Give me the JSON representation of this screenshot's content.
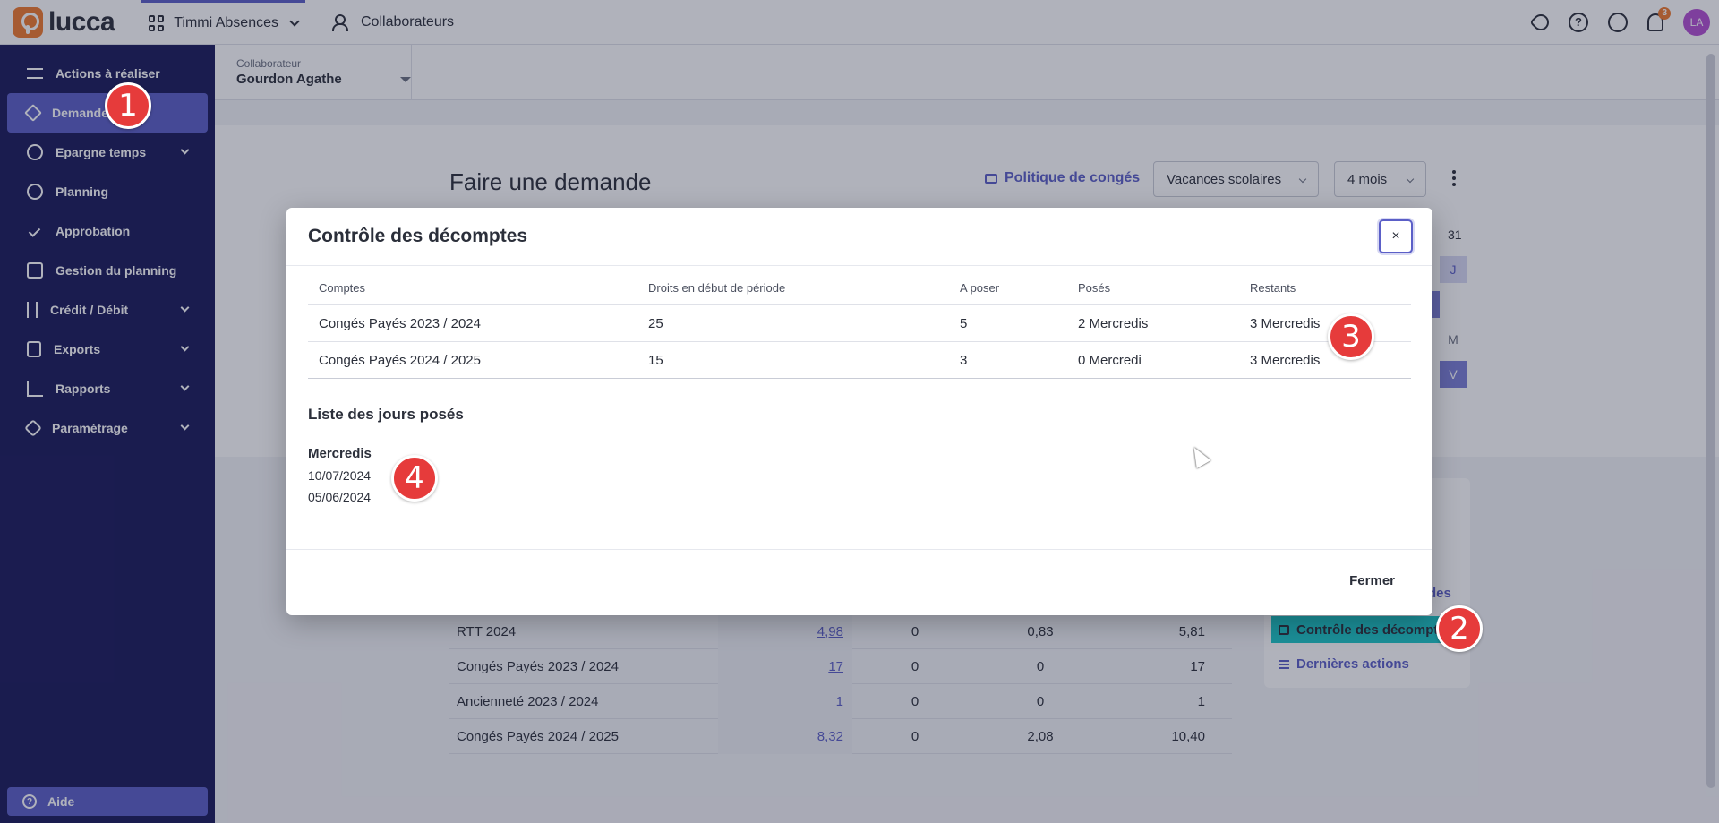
{
  "topbar": {
    "logo_text": "lucca",
    "app_name": "Timmi Absences",
    "collaborators_link": "Collaborateurs",
    "notification_count": "3",
    "help_glyph": "?",
    "avatar_initials": "LA"
  },
  "sidebar": {
    "items": [
      {
        "label": "Actions à réaliser",
        "icon": "task-list-icon"
      },
      {
        "label": "Demande",
        "icon": "paper-plane-icon"
      },
      {
        "label": "Epargne temps",
        "icon": "clock-icon"
      },
      {
        "label": "Planning",
        "icon": "eye-icon"
      },
      {
        "label": "Approbation",
        "icon": "check-icon"
      },
      {
        "label": "Gestion du planning",
        "icon": "calendar-icon"
      },
      {
        "label": "Crédit / Débit",
        "icon": "arrows-icon"
      },
      {
        "label": "Exports",
        "icon": "export-icon"
      },
      {
        "label": "Rapports",
        "icon": "chart-icon"
      },
      {
        "label": "Paramétrage",
        "icon": "tools-icon"
      }
    ],
    "help_label": "Aide"
  },
  "steps": [
    "1",
    "2",
    "3",
    "4"
  ],
  "subheader": {
    "collab_label": "Collaborateur",
    "collab_value": "Gourdon Agathe"
  },
  "page": {
    "title": "Faire une demande",
    "policy_link": "Politique de congés",
    "select_holidays": "Vacances scolaires",
    "select_period": "4 mois"
  },
  "calendar_fragments": {
    "day_31": "31",
    "cell_j": "J",
    "cell_m": "M",
    "cell_v": "V"
  },
  "background_table": {
    "rows": [
      {
        "name": "RTT 2024",
        "rights": "4,98",
        "to_place": "0",
        "placed": "0,83",
        "remaining": "5,81"
      },
      {
        "name": "Congés Payés 2023 / 2024",
        "rights": "17",
        "to_place": "0",
        "placed": "0",
        "remaining": "17"
      },
      {
        "name": "Ancienneté 2023 / 2024",
        "rights": "1",
        "to_place": "0",
        "placed": "0",
        "remaining": "1"
      },
      {
        "name": "Congés Payés 2024 / 2025",
        "rights": "8,32",
        "to_place": "0",
        "placed": "2,08",
        "remaining": "10,40"
      }
    ]
  },
  "side_card": {
    "partial_link": "des",
    "control_link": "Contrôle des décomptes",
    "last_actions_link": "Dernières actions"
  },
  "modal": {
    "title": "Contrôle des décomptes",
    "close_glyph": "×",
    "columns": [
      "Comptes",
      "Droits en début de période",
      "A poser",
      "Posés",
      "Restants"
    ],
    "rows": [
      {
        "account": "Congés Payés 2023 / 2024",
        "rights": "25",
        "to_place": "5",
        "placed": "2 Mercredis",
        "remaining": "3 Mercredis"
      },
      {
        "account": "Congés Payés 2024 / 2025",
        "rights": "15",
        "to_place": "3",
        "placed": "0 Mercredi",
        "remaining": "3 Mercredis"
      }
    ],
    "list_title": "Liste des jours posés",
    "day_group": "Mercredis",
    "days": [
      "10/07/2024",
      "05/06/2024"
    ],
    "footer_close": "Fermer"
  }
}
